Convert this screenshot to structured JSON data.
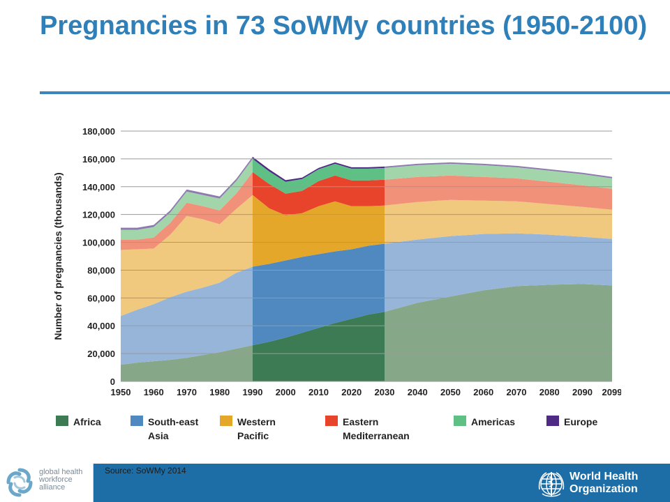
{
  "title": "Pregnancies in 73 SoWMy countries (1950-2100)",
  "source": "Source: SoWMy 2014",
  "footer": {
    "left_logo_text": "global health workforce alliance",
    "right_logo_text_line1": "World Health",
    "right_logo_text_line2": "Organization"
  },
  "colors": {
    "title": "#2f7fb9",
    "footer": "#1d6ea7"
  },
  "chart_data": {
    "type": "area",
    "stacked": true,
    "ylabel": "Number of pregnancies (thousands)",
    "ylim": [
      0,
      180000
    ],
    "yticks": [
      0,
      20000,
      40000,
      60000,
      80000,
      100000,
      120000,
      140000,
      160000,
      180000
    ],
    "ytick_labels": [
      "0",
      "20,000",
      "40,000",
      "60,000",
      "80,000",
      "100,000",
      "120,000",
      "140,000",
      "160,000",
      "180,000"
    ],
    "xlim": [
      1950,
      2099
    ],
    "xtick_labels": [
      "1950",
      "1960",
      "1970",
      "1980",
      "1990",
      "2000",
      "2010",
      "2020",
      "2030",
      "2040",
      "2050",
      "2060",
      "2070",
      "2080",
      "2090",
      "2099"
    ],
    "highlight_range": [
      1990,
      2030
    ],
    "grid": true,
    "legend_position": "bottom",
    "x": [
      1950,
      1955,
      1960,
      1965,
      1970,
      1975,
      1980,
      1985,
      1990,
      1995,
      2000,
      2005,
      2010,
      2015,
      2020,
      2025,
      2030,
      2040,
      2050,
      2060,
      2070,
      2080,
      2090,
      2099
    ],
    "series": [
      {
        "name": "Africa",
        "color": "#3c7b53",
        "light_color": "#87a789",
        "values": [
          12000,
          13500,
          14500,
          15500,
          17000,
          19000,
          21000,
          23500,
          26000,
          28500,
          31500,
          35000,
          38500,
          42000,
          45000,
          48000,
          50000,
          56500,
          61000,
          65500,
          68500,
          69500,
          70000,
          69000
        ]
      },
      {
        "name": "South-east Asia",
        "color": "#4f89c0",
        "light_color": "#96b5d9",
        "values": [
          35000,
          38000,
          41000,
          45000,
          47500,
          48500,
          50000,
          54500,
          56500,
          56000,
          55500,
          54500,
          53000,
          51500,
          50000,
          49500,
          49000,
          45500,
          43500,
          40500,
          38000,
          36000,
          34000,
          33500
        ]
      },
      {
        "name": "Western Pacific",
        "color": "#e5a72a",
        "light_color": "#f0c87e",
        "values": [
          47500,
          43500,
          40000,
          45000,
          54500,
          49000,
          42000,
          46000,
          51500,
          40000,
          32500,
          31500,
          34500,
          36000,
          31000,
          28500,
          27500,
          27000,
          26000,
          24000,
          23000,
          22000,
          21500,
          21000
        ]
      },
      {
        "name": "Eastern Mediterranean",
        "color": "#e8442c",
        "light_color": "#f2917a",
        "values": [
          7500,
          7000,
          8000,
          8500,
          9500,
          9500,
          10000,
          11000,
          16500,
          17500,
          15500,
          16000,
          18000,
          18500,
          18500,
          18500,
          18500,
          18000,
          17500,
          17000,
          16500,
          16000,
          15500,
          15000
        ]
      },
      {
        "name": "Americas",
        "color": "#5ec084",
        "light_color": "#a2d6aa",
        "values": [
          7000,
          7000,
          7500,
          7500,
          8000,
          8000,
          8500,
          9000,
          9500,
          9000,
          8500,
          8500,
          8500,
          8500,
          8500,
          8500,
          8500,
          8500,
          8500,
          8500,
          8000,
          8000,
          8000,
          7500
        ]
      },
      {
        "name": "Europe",
        "color": "#4e2a84",
        "light_color": "#8e7ab0",
        "values": [
          1500,
          1500,
          1500,
          1500,
          1500,
          1500,
          1500,
          1500,
          1500,
          1500,
          1200,
          1000,
          1000,
          1000,
          1000,
          1000,
          1000,
          1000,
          1000,
          1000,
          1000,
          1000,
          1000,
          1000
        ]
      }
    ],
    "legend": [
      {
        "name": "Africa",
        "label_lines": [
          "Africa"
        ]
      },
      {
        "name": "South-east Asia",
        "label_lines": [
          "South-east",
          "Asia"
        ]
      },
      {
        "name": "Western Pacific",
        "label_lines": [
          "Western",
          "Pacific"
        ]
      },
      {
        "name": "Eastern Mediterranean",
        "label_lines": [
          "Eastern",
          "Mediterranean"
        ]
      },
      {
        "name": "Americas",
        "label_lines": [
          "Americas"
        ]
      },
      {
        "name": "Europe",
        "label_lines": [
          "Europe"
        ]
      }
    ]
  }
}
